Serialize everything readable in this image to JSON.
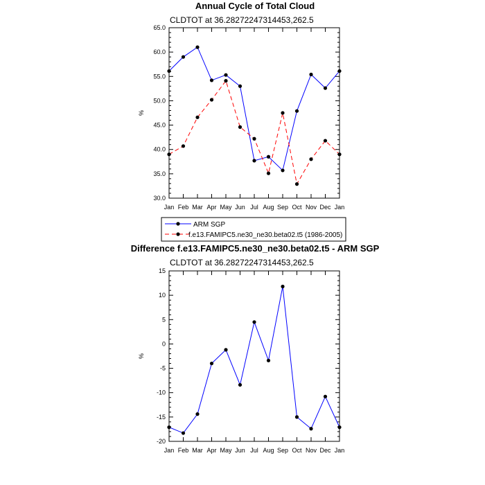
{
  "chart_data": [
    {
      "type": "line",
      "title": "Annual Cycle of Total Cloud",
      "subtitle": "CLDTOT at 36.28272247314453,262.5",
      "xlabel": "",
      "ylabel": "%",
      "categories": [
        "Jan",
        "Feb",
        "Mar",
        "Apr",
        "May",
        "Jun",
        "Jul",
        "Aug",
        "Sep",
        "Oct",
        "Nov",
        "Dec",
        "Jan"
      ],
      "ylim": [
        30,
        65
      ],
      "yticks": [
        30.0,
        35.0,
        40.0,
        45.0,
        50.0,
        55.0,
        60.0,
        65.0
      ],
      "ytick_labels": [
        "30.0",
        "35.0",
        "40.0",
        "45.0",
        "50.0",
        "55.0",
        "60.0",
        "65.0"
      ],
      "series": [
        {
          "name": "ARM SGP",
          "color": "#0000ff",
          "dash": "solid",
          "values": [
            56.1,
            59.0,
            61.0,
            54.2,
            55.3,
            53.0,
            37.7,
            38.5,
            35.7,
            47.9,
            55.4,
            52.6,
            56.1
          ]
        },
        {
          "name": "f.e13.FAMIPC5.ne30_ne30.beta02.t5 (1986-2005)",
          "color": "#ff0000",
          "dash": "dashed",
          "values": [
            39.0,
            40.7,
            46.6,
            50.2,
            54.1,
            44.6,
            42.2,
            35.1,
            47.5,
            32.9,
            38.0,
            41.8,
            39.0
          ]
        }
      ],
      "legend": "bottom"
    },
    {
      "type": "line",
      "title": "Difference f.e13.FAMIPC5.ne30_ne30.beta02.t5 - ARM SGP",
      "subtitle": "CLDTOT at 36.28272247314453,262.5",
      "xlabel": "",
      "ylabel": "%",
      "categories": [
        "Jan",
        "Feb",
        "Mar",
        "Apr",
        "May",
        "Jun",
        "Jul",
        "Aug",
        "Sep",
        "Oct",
        "Nov",
        "Dec",
        "Jan"
      ],
      "ylim": [
        -20,
        15
      ],
      "yticks": [
        -20,
        -15,
        -10,
        -5,
        0,
        5,
        10,
        15
      ],
      "ytick_labels": [
        "-20",
        "-15",
        "-10",
        "-5",
        "0",
        "5",
        "10",
        "15"
      ],
      "series": [
        {
          "name": "Difference",
          "color": "#0000ff",
          "dash": "solid",
          "values": [
            -17.1,
            -18.3,
            -14.4,
            -4.0,
            -1.2,
            -8.4,
            4.5,
            -3.4,
            11.8,
            -15.0,
            -17.4,
            -10.8,
            -17.1
          ]
        }
      ]
    }
  ]
}
